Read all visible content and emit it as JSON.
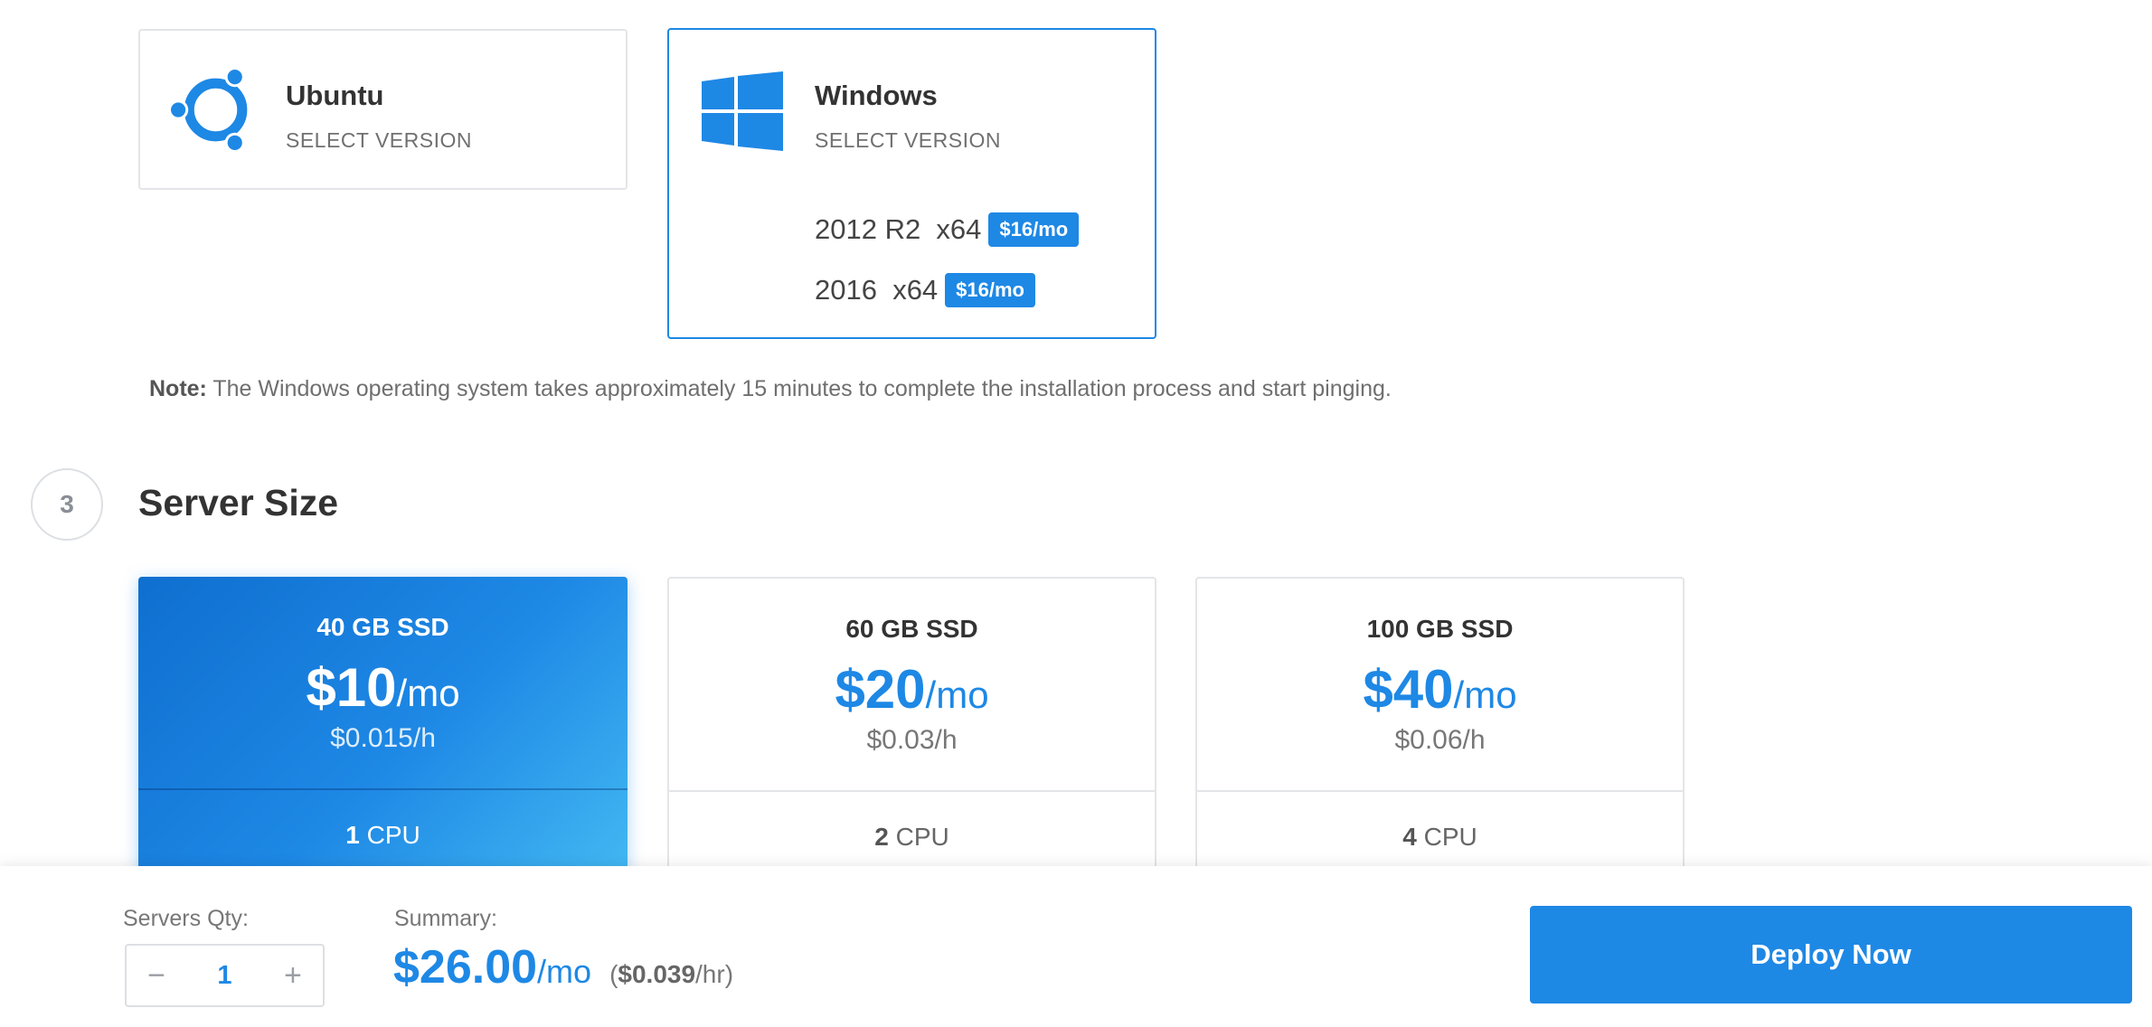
{
  "os": {
    "ubuntu": {
      "name": "Ubuntu",
      "select_label": "SELECT VERSION",
      "icon": "ubuntu-logo-icon"
    },
    "windows": {
      "name": "Windows",
      "select_label": "SELECT VERSION",
      "icon": "windows-logo-icon",
      "versions": [
        {
          "label": "2012 R2  x64",
          "price": "$16/mo"
        },
        {
          "label": "2016  x64",
          "price": "$16/mo"
        }
      ]
    }
  },
  "note": {
    "prefix": "Note:",
    "text": " The Windows operating system takes approximately 15 minutes to complete the installation process and start pinging."
  },
  "section": {
    "step": "3",
    "title": "Server Size"
  },
  "sizes": [
    {
      "title": "40 GB SSD",
      "price": "$10",
      "per": "/mo",
      "hourly": "$0.015/h",
      "cpu_count": "1",
      "cpu_label": " CPU",
      "selected": true
    },
    {
      "title": "60 GB SSD",
      "price": "$20",
      "per": "/mo",
      "hourly": "$0.03/h",
      "cpu_count": "2",
      "cpu_label": " CPU",
      "selected": false
    },
    {
      "title": "100 GB SSD",
      "price": "$40",
      "per": "/mo",
      "hourly": "$0.06/h",
      "cpu_count": "4",
      "cpu_label": " CPU",
      "selected": false
    }
  ],
  "footer": {
    "qty_label": "Servers Qty:",
    "qty_minus": "−",
    "qty_value": "1",
    "qty_plus": "+",
    "summary_label": "Summary:",
    "summary_price": "$26.00",
    "summary_per": "/mo",
    "summary_hr_open": "(",
    "summary_hr_value": "$0.039",
    "summary_hr_unit": "/hr)",
    "deploy_label": "Deploy Now"
  },
  "colors": {
    "accent": "#1e88e5",
    "text": "#333333",
    "muted": "#777777",
    "border": "#e3e5e8"
  }
}
